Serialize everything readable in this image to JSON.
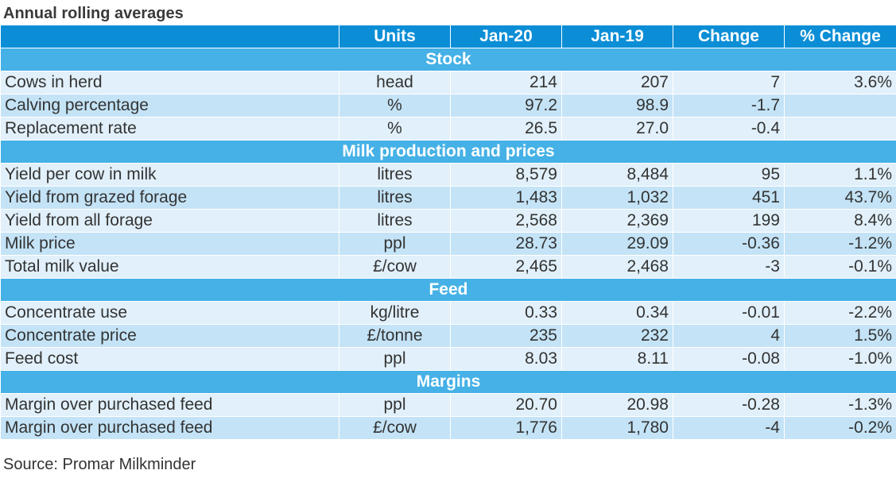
{
  "title": "Annual rolling averages",
  "headers": [
    "",
    "Units",
    "Jan-20",
    "Jan-19",
    "Change",
    "% Change"
  ],
  "sections": [
    {
      "name": "Stock",
      "rows": [
        {
          "label": "Cows in herd",
          "unit": "head",
          "jan20": "214",
          "jan19": "207",
          "change": "7",
          "pct": "3.6%"
        },
        {
          "label": "Calving percentage",
          "unit": "%",
          "jan20": "97.2",
          "jan19": "98.9",
          "change": "-1.7",
          "pct": ""
        },
        {
          "label": "Replacement rate",
          "unit": "%",
          "jan20": "26.5",
          "jan19": "27.0",
          "change": "-0.4",
          "pct": ""
        }
      ]
    },
    {
      "name": "Milk production and prices",
      "rows": [
        {
          "label": "Yield per cow in milk",
          "unit": "litres",
          "jan20": "8,579",
          "jan19": "8,484",
          "change": "95",
          "pct": "1.1%"
        },
        {
          "label": "Yield from grazed forage",
          "unit": "litres",
          "jan20": "1,483",
          "jan19": "1,032",
          "change": "451",
          "pct": "43.7%"
        },
        {
          "label": "Yield from all forage",
          "unit": "litres",
          "jan20": "2,568",
          "jan19": "2,369",
          "change": "199",
          "pct": "8.4%"
        },
        {
          "label": "Milk price",
          "unit": "ppl",
          "jan20": "28.73",
          "jan19": "29.09",
          "change": "-0.36",
          "pct": "-1.2%"
        },
        {
          "label": "Total milk value",
          "unit": "£/cow",
          "jan20": "2,465",
          "jan19": "2,468",
          "change": "-3",
          "pct": "-0.1%"
        }
      ]
    },
    {
      "name": "Feed",
      "rows": [
        {
          "label": "Concentrate use",
          "unit": "kg/litre",
          "jan20": "0.33",
          "jan19": "0.34",
          "change": "-0.01",
          "pct": "-2.2%"
        },
        {
          "label": "Concentrate price",
          "unit": "£/tonne",
          "jan20": "235",
          "jan19": "232",
          "change": "4",
          "pct": "1.5%"
        },
        {
          "label": "Feed cost",
          "unit": "ppl",
          "jan20": "8.03",
          "jan19": "8.11",
          "change": "-0.08",
          "pct": "-1.0%"
        }
      ]
    },
    {
      "name": "Margins",
      "rows": [
        {
          "label": "Margin over purchased feed",
          "unit": "ppl",
          "jan20": "20.70",
          "jan19": "20.98",
          "change": "-0.28",
          "pct": "-1.3%"
        },
        {
          "label": "Margin over purchased feed",
          "unit": "£/cow",
          "jan20": "1,776",
          "jan19": "1,780",
          "change": "-4",
          "pct": "-0.2%"
        }
      ]
    }
  ],
  "source": "Source: Promar Milkminder"
}
